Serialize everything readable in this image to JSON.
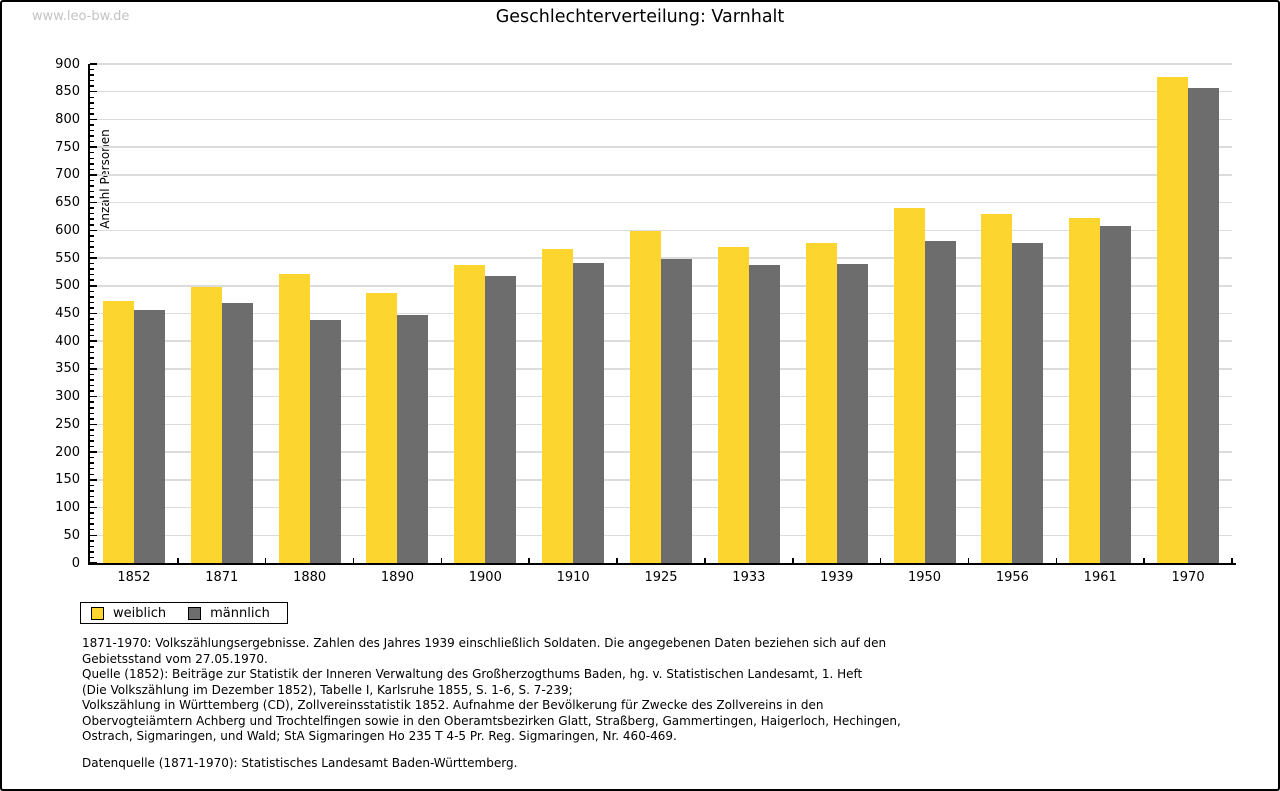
{
  "page": {
    "watermark": "www.leo-bw.de",
    "title": "Geschlechterverteilung: Varnhalt"
  },
  "chart_data": {
    "type": "bar",
    "title": "Geschlechterverteilung: Varnhalt",
    "ylabel": "Anzahl Personen",
    "xlabel": "",
    "categories": [
      "1852",
      "1871",
      "1880",
      "1890",
      "1900",
      "1910",
      "1925",
      "1933",
      "1939",
      "1950",
      "1956",
      "1961",
      "1970"
    ],
    "series": [
      {
        "name": "weiblich",
        "color": "#FCD52F",
        "values": [
          473,
          498,
          521,
          487,
          537,
          566,
          599,
          570,
          578,
          640,
          629,
          623,
          877
        ]
      },
      {
        "name": "männlich",
        "color": "#6D6D6D",
        "values": [
          457,
          469,
          438,
          448,
          518,
          541,
          549,
          538,
          539,
          580,
          577,
          608,
          856
        ]
      }
    ],
    "ylim": [
      0,
      900
    ],
    "ytick_step": 50,
    "minor_tick_step": 10,
    "grid": true,
    "gridline_color": "#DCDCDC",
    "legend_position": "bottom-left"
  },
  "footnotes": {
    "lines": [
      "1871-1970: Volkszählungsergebnisse. Zahlen des Jahres 1939 einschließlich Soldaten. Die angegebenen Daten beziehen sich auf den",
      "Gebietsstand vom 27.05.1970.",
      "Quelle (1852): Beiträge zur Statistik der Inneren Verwaltung des Großherzogthums Baden, hg. v. Statistischen Landesamt, 1. Heft",
      "(Die Volkszählung im Dezember 1852), Tabelle I, Karlsruhe 1855, S. 1-6, S. 7-239;",
      "Volkszählung in Württemberg (CD), Zollvereinsstatistik 1852. Aufnahme der Bevölkerung für Zwecke des Zollvereins in den",
      "Obervogteiämtern Achberg und Trochtelfingen sowie in den Oberamtsbezirken Glatt, Straßberg, Gammertingen, Haigerloch, Hechingen,",
      "Ostrach, Sigmaringen, und Wald; StA Sigmaringen Ho 235 T 4-5 Pr. Reg. Sigmaringen, Nr. 460-469."
    ],
    "datasource": "Datenquelle (1871-1970): Statistisches Landesamt Baden-Württemberg."
  }
}
